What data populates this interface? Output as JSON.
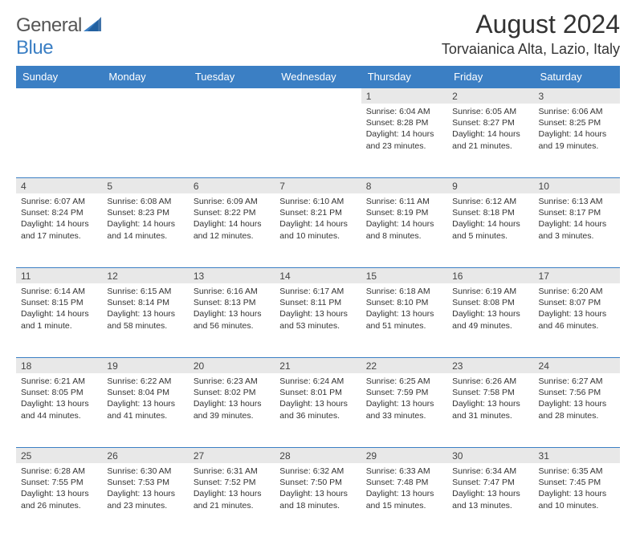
{
  "logo": {
    "text_general": "General",
    "text_blue": "Blue"
  },
  "title": "August 2024",
  "location": "Torvaianica Alta, Lazio, Italy",
  "header_color": "#3b7fc4",
  "daynum_bg": "#e8e8e8",
  "weekdays": [
    "Sunday",
    "Monday",
    "Tuesday",
    "Wednesday",
    "Thursday",
    "Friday",
    "Saturday"
  ],
  "weeks": [
    [
      null,
      null,
      null,
      null,
      {
        "n": "1",
        "sr": "Sunrise: 6:04 AM",
        "ss": "Sunset: 8:28 PM",
        "dl": "Daylight: 14 hours and 23 minutes."
      },
      {
        "n": "2",
        "sr": "Sunrise: 6:05 AM",
        "ss": "Sunset: 8:27 PM",
        "dl": "Daylight: 14 hours and 21 minutes."
      },
      {
        "n": "3",
        "sr": "Sunrise: 6:06 AM",
        "ss": "Sunset: 8:25 PM",
        "dl": "Daylight: 14 hours and 19 minutes."
      }
    ],
    [
      {
        "n": "4",
        "sr": "Sunrise: 6:07 AM",
        "ss": "Sunset: 8:24 PM",
        "dl": "Daylight: 14 hours and 17 minutes."
      },
      {
        "n": "5",
        "sr": "Sunrise: 6:08 AM",
        "ss": "Sunset: 8:23 PM",
        "dl": "Daylight: 14 hours and 14 minutes."
      },
      {
        "n": "6",
        "sr": "Sunrise: 6:09 AM",
        "ss": "Sunset: 8:22 PM",
        "dl": "Daylight: 14 hours and 12 minutes."
      },
      {
        "n": "7",
        "sr": "Sunrise: 6:10 AM",
        "ss": "Sunset: 8:21 PM",
        "dl": "Daylight: 14 hours and 10 minutes."
      },
      {
        "n": "8",
        "sr": "Sunrise: 6:11 AM",
        "ss": "Sunset: 8:19 PM",
        "dl": "Daylight: 14 hours and 8 minutes."
      },
      {
        "n": "9",
        "sr": "Sunrise: 6:12 AM",
        "ss": "Sunset: 8:18 PM",
        "dl": "Daylight: 14 hours and 5 minutes."
      },
      {
        "n": "10",
        "sr": "Sunrise: 6:13 AM",
        "ss": "Sunset: 8:17 PM",
        "dl": "Daylight: 14 hours and 3 minutes."
      }
    ],
    [
      {
        "n": "11",
        "sr": "Sunrise: 6:14 AM",
        "ss": "Sunset: 8:15 PM",
        "dl": "Daylight: 14 hours and 1 minute."
      },
      {
        "n": "12",
        "sr": "Sunrise: 6:15 AM",
        "ss": "Sunset: 8:14 PM",
        "dl": "Daylight: 13 hours and 58 minutes."
      },
      {
        "n": "13",
        "sr": "Sunrise: 6:16 AM",
        "ss": "Sunset: 8:13 PM",
        "dl": "Daylight: 13 hours and 56 minutes."
      },
      {
        "n": "14",
        "sr": "Sunrise: 6:17 AM",
        "ss": "Sunset: 8:11 PM",
        "dl": "Daylight: 13 hours and 53 minutes."
      },
      {
        "n": "15",
        "sr": "Sunrise: 6:18 AM",
        "ss": "Sunset: 8:10 PM",
        "dl": "Daylight: 13 hours and 51 minutes."
      },
      {
        "n": "16",
        "sr": "Sunrise: 6:19 AM",
        "ss": "Sunset: 8:08 PM",
        "dl": "Daylight: 13 hours and 49 minutes."
      },
      {
        "n": "17",
        "sr": "Sunrise: 6:20 AM",
        "ss": "Sunset: 8:07 PM",
        "dl": "Daylight: 13 hours and 46 minutes."
      }
    ],
    [
      {
        "n": "18",
        "sr": "Sunrise: 6:21 AM",
        "ss": "Sunset: 8:05 PM",
        "dl": "Daylight: 13 hours and 44 minutes."
      },
      {
        "n": "19",
        "sr": "Sunrise: 6:22 AM",
        "ss": "Sunset: 8:04 PM",
        "dl": "Daylight: 13 hours and 41 minutes."
      },
      {
        "n": "20",
        "sr": "Sunrise: 6:23 AM",
        "ss": "Sunset: 8:02 PM",
        "dl": "Daylight: 13 hours and 39 minutes."
      },
      {
        "n": "21",
        "sr": "Sunrise: 6:24 AM",
        "ss": "Sunset: 8:01 PM",
        "dl": "Daylight: 13 hours and 36 minutes."
      },
      {
        "n": "22",
        "sr": "Sunrise: 6:25 AM",
        "ss": "Sunset: 7:59 PM",
        "dl": "Daylight: 13 hours and 33 minutes."
      },
      {
        "n": "23",
        "sr": "Sunrise: 6:26 AM",
        "ss": "Sunset: 7:58 PM",
        "dl": "Daylight: 13 hours and 31 minutes."
      },
      {
        "n": "24",
        "sr": "Sunrise: 6:27 AM",
        "ss": "Sunset: 7:56 PM",
        "dl": "Daylight: 13 hours and 28 minutes."
      }
    ],
    [
      {
        "n": "25",
        "sr": "Sunrise: 6:28 AM",
        "ss": "Sunset: 7:55 PM",
        "dl": "Daylight: 13 hours and 26 minutes."
      },
      {
        "n": "26",
        "sr": "Sunrise: 6:30 AM",
        "ss": "Sunset: 7:53 PM",
        "dl": "Daylight: 13 hours and 23 minutes."
      },
      {
        "n": "27",
        "sr": "Sunrise: 6:31 AM",
        "ss": "Sunset: 7:52 PM",
        "dl": "Daylight: 13 hours and 21 minutes."
      },
      {
        "n": "28",
        "sr": "Sunrise: 6:32 AM",
        "ss": "Sunset: 7:50 PM",
        "dl": "Daylight: 13 hours and 18 minutes."
      },
      {
        "n": "29",
        "sr": "Sunrise: 6:33 AM",
        "ss": "Sunset: 7:48 PM",
        "dl": "Daylight: 13 hours and 15 minutes."
      },
      {
        "n": "30",
        "sr": "Sunrise: 6:34 AM",
        "ss": "Sunset: 7:47 PM",
        "dl": "Daylight: 13 hours and 13 minutes."
      },
      {
        "n": "31",
        "sr": "Sunrise: 6:35 AM",
        "ss": "Sunset: 7:45 PM",
        "dl": "Daylight: 13 hours and 10 minutes."
      }
    ]
  ]
}
